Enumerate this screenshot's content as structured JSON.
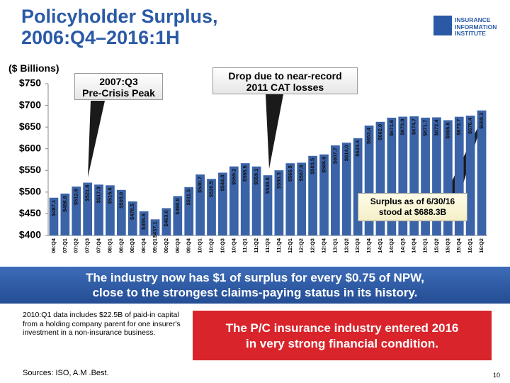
{
  "title": [
    "Policyholder Surplus,",
    "2006:Q4–2016:1H"
  ],
  "logo": [
    "INSURANCE",
    "INFORMATION",
    "INSTITUTE"
  ],
  "chart_data": {
    "type": "bar",
    "y_label": "($ Billions)",
    "categories": [
      "06:Q4",
      "07:Q1",
      "07:Q2",
      "07:Q3",
      "07:Q4",
      "08:Q1",
      "08:Q2",
      "08:Q3",
      "08:Q4",
      "09:Q1",
      "09:Q2",
      "09:Q3",
      "09:Q4",
      "10:Q1",
      "10:Q2",
      "10:Q3",
      "10:Q4",
      "11:Q1",
      "11:Q2",
      "11:Q3",
      "11:Q4",
      "12:Q1",
      "12:Q2",
      "12:Q3",
      "12:Q4",
      "13:Q1",
      "13:Q2",
      "13:Q3",
      "13:Q4",
      "14:Q1",
      "14:Q2",
      "14:Q3",
      "14:Q4",
      "15:Q1",
      "15:Q2",
      "15:Q3",
      "15:Q4",
      "16:Q1",
      "16:Q2"
    ],
    "values": [
      487.1,
      496.6,
      512.8,
      521.8,
      517.3,
      515.6,
      505.0,
      478.5,
      455.6,
      437.1,
      463.0,
      490.8,
      511.5,
      540.7,
      530.5,
      544.8,
      559.2,
      566.6,
      559.1,
      538.8,
      550.3,
      566.5,
      567.8,
      583.5,
      586.9,
      607.7,
      614.0,
      624.4,
      653.4,
      662.0,
      671.6,
      673.9,
      674.7,
      671.7,
      672.4,
      665.8,
      673.7,
      676.4,
      688.3
    ],
    "value_labels": [
      "$487.1",
      "$496.6",
      "$512.8",
      "$521.8",
      "$517.3",
      "$515.6",
      "$505.0",
      "$478.5",
      "$455.6",
      "$437.1",
      "$463.0",
      "$490.8",
      "$511.5",
      "$540.7",
      "$530.5",
      "$544.8",
      "$559.2",
      "$566.6",
      "$559.1",
      "$538.8",
      "$550.3",
      "$566.5",
      "$567.8",
      "$583.5",
      "$586.9",
      "$607.7",
      "$614.0",
      "$624.4",
      "$653.4",
      "$662.0",
      "$671.6",
      "$673.9",
      "$674.7",
      "$671.7",
      "$672.4",
      "$665.8",
      "$673.7",
      "$676.4",
      "$688.3"
    ],
    "color": "#3b63a8",
    "ylim": [
      400,
      750
    ],
    "yticks": [
      {
        "value": 400,
        "label": "$400"
      },
      {
        "value": 450,
        "label": "$450"
      },
      {
        "value": 500,
        "label": "$500"
      },
      {
        "value": 550,
        "label": "$550"
      },
      {
        "value": 600,
        "label": "$600"
      },
      {
        "value": 650,
        "label": "$650"
      },
      {
        "value": 700,
        "label": "$700"
      },
      {
        "value": 750,
        "label": "$750"
      }
    ],
    "grid": false,
    "annotations": [
      [
        "2007:Q3",
        "Pre-Crisis Peak"
      ],
      [
        "Drop due to near-record",
        "2011 CAT losses"
      ],
      [
        "Surplus as of 6/30/16",
        "stood at $688.3B"
      ]
    ]
  },
  "banner": [
    "The industry now has $1 of surplus for every $0.75 of NPW,",
    "close to the strongest claims-paying status in its history."
  ],
  "note": "2010:Q1 data includes $22.5B of paid-in capital from a holding company parent for one insurer's investment in a non-insurance business.",
  "conclusion": [
    "The P/C insurance industry entered 2016",
    "in very strong financial condition."
  ],
  "sources": "Sources: ISO, A.M .Best.",
  "page_number": "10"
}
